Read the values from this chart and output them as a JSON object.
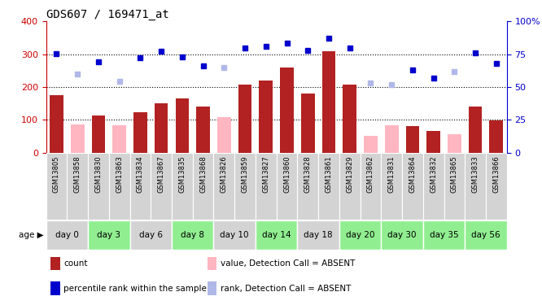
{
  "title": "GDS607 / 169471_at",
  "samples": [
    "GSM13805",
    "GSM13858",
    "GSM13830",
    "GSM13863",
    "GSM13834",
    "GSM13867",
    "GSM13835",
    "GSM13868",
    "GSM13826",
    "GSM13859",
    "GSM13827",
    "GSM13860",
    "GSM13828",
    "GSM13861",
    "GSM13829",
    "GSM13862",
    "GSM13831",
    "GSM13864",
    "GSM13832",
    "GSM13865",
    "GSM13833",
    "GSM13866"
  ],
  "days": [
    "day 0",
    "day 3",
    "day 6",
    "day 8",
    "day 10",
    "day 14",
    "day 18",
    "day 20",
    "day 30",
    "day 35",
    "day 56"
  ],
  "day_groups": {
    "day 0": [
      "GSM13805",
      "GSM13858"
    ],
    "day 3": [
      "GSM13830",
      "GSM13863"
    ],
    "day 6": [
      "GSM13834",
      "GSM13867"
    ],
    "day 8": [
      "GSM13835",
      "GSM13868"
    ],
    "day 10": [
      "GSM13826",
      "GSM13859"
    ],
    "day 14": [
      "GSM13827",
      "GSM13860"
    ],
    "day 18": [
      "GSM13828",
      "GSM13861"
    ],
    "day 20": [
      "GSM13829",
      "GSM13862"
    ],
    "day 30": [
      "GSM13831",
      "GSM13864"
    ],
    "day 35": [
      "GSM13832",
      "GSM13865"
    ],
    "day 56": [
      "GSM13833",
      "GSM13866"
    ]
  },
  "count_values": {
    "GSM13805": 174,
    "GSM13858": null,
    "GSM13830": 112,
    "GSM13863": null,
    "GSM13834": 122,
    "GSM13867": 150,
    "GSM13835": 165,
    "GSM13868": 140,
    "GSM13826": null,
    "GSM13859": 208,
    "GSM13827": 220,
    "GSM13860": 258,
    "GSM13828": 180,
    "GSM13861": 308,
    "GSM13829": 207,
    "GSM13862": null,
    "GSM13831": null,
    "GSM13864": 80,
    "GSM13832": 65,
    "GSM13865": null,
    "GSM13833": 140,
    "GSM13866": 97
  },
  "absent_count_values": {
    "GSM13858": 85,
    "GSM13863": 82,
    "GSM13826": 107,
    "GSM13862": 52,
    "GSM13831": 82,
    "GSM13865": 55
  },
  "percentile_values": {
    "GSM13805": 75.5,
    "GSM13858": null,
    "GSM13830": 69,
    "GSM13863": null,
    "GSM13834": 72,
    "GSM13867": 77,
    "GSM13835": 73,
    "GSM13868": 66,
    "GSM13826": null,
    "GSM13859": 80,
    "GSM13827": 81,
    "GSM13860": 83.5,
    "GSM13828": 78,
    "GSM13861": 87,
    "GSM13829": 80,
    "GSM13862": null,
    "GSM13831": null,
    "GSM13864": 63,
    "GSM13832": 57,
    "GSM13865": null,
    "GSM13833": 76,
    "GSM13866": 68
  },
  "absent_percentile_values": {
    "GSM13858": 60,
    "GSM13863": 54,
    "GSM13826": 65,
    "GSM13862": 53,
    "GSM13831": 52,
    "GSM13865": 62
  },
  "bar_color": "#b22222",
  "absent_bar_color": "#ffb6c1",
  "dot_color": "#0000cd",
  "absent_dot_color": "#b0b8e8",
  "ylim_left": [
    0,
    400
  ],
  "ylim_right": [
    0,
    100
  ],
  "bar_color_red": "#cc0000",
  "ylabel_right_color": "#0000cd",
  "grid_lines": [
    100,
    200,
    300
  ],
  "plot_bg_color": "#ffffff",
  "sample_bg_color": "#d3d3d3",
  "day_bg_colors": {
    "day 0": "#d3d3d3",
    "day 3": "#90ee90",
    "day 6": "#d3d3d3",
    "day 8": "#90ee90",
    "day 10": "#d3d3d3",
    "day 14": "#90ee90",
    "day 18": "#d3d3d3",
    "day 20": "#90ee90",
    "day 30": "#90ee90",
    "day 35": "#90ee90",
    "day 56": "#90ee90"
  }
}
